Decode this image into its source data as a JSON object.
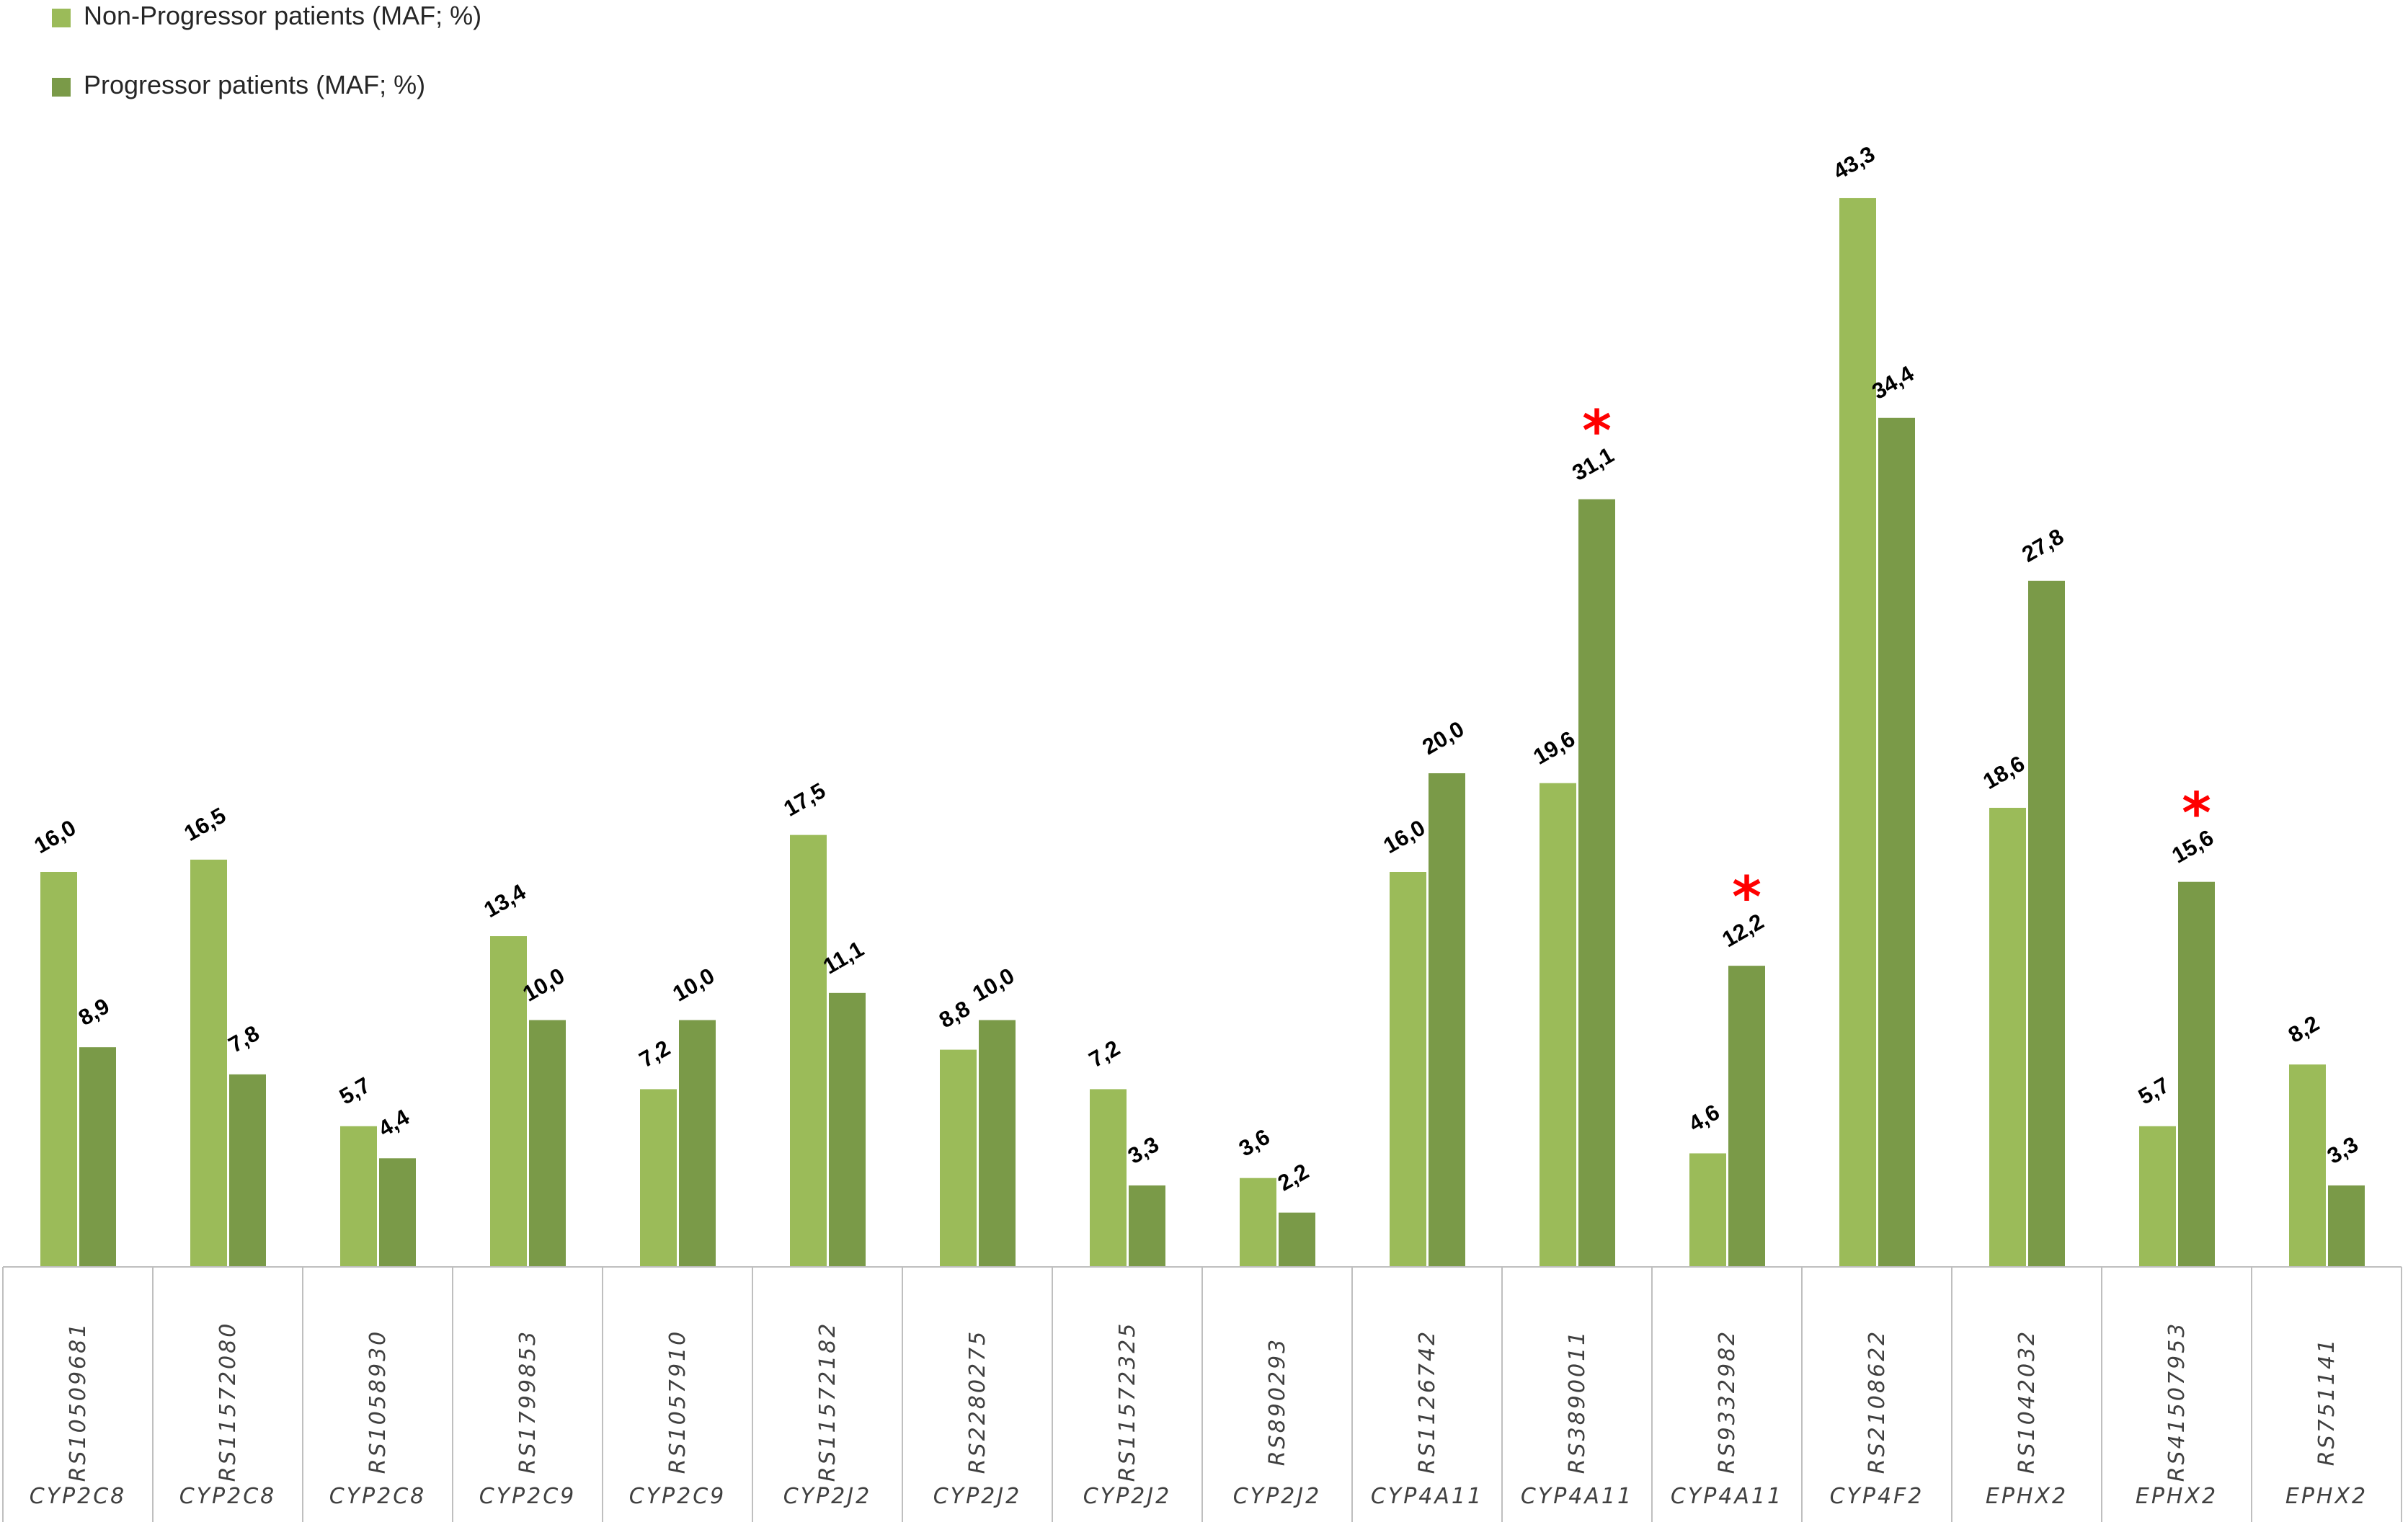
{
  "chart_data": {
    "type": "bar",
    "title": "",
    "xlabel": "",
    "ylabel": "",
    "ylim": [
      0,
      45
    ],
    "grid": false,
    "legend": "top-left",
    "categories": [
      {
        "snp": "RS10509681",
        "gene": "CYP2C8"
      },
      {
        "snp": "RS11572080",
        "gene": "CYP2C8"
      },
      {
        "snp": "RS1058930",
        "gene": "CYP2C8"
      },
      {
        "snp": "RS1799853",
        "gene": "CYP2C9"
      },
      {
        "snp": "RS1057910",
        "gene": "CYP2C9"
      },
      {
        "snp": "RS11572182",
        "gene": "CYP2J2"
      },
      {
        "snp": "RS2280275",
        "gene": "CYP2J2"
      },
      {
        "snp": "RS11572325",
        "gene": "CYP2J2"
      },
      {
        "snp": "RS890293",
        "gene": "CYP2J2"
      },
      {
        "snp": "RS1126742",
        "gene": "CYP4A11"
      },
      {
        "snp": "RS3890011",
        "gene": "CYP4A11"
      },
      {
        "snp": "RS9332982",
        "gene": "CYP4A11"
      },
      {
        "snp": "RS2108622",
        "gene": "CYP4F2"
      },
      {
        "snp": "RS1042032",
        "gene": "EPHX2"
      },
      {
        "snp": "RS41507953",
        "gene": "EPHX2"
      },
      {
        "snp": "RS751141",
        "gene": "EPHX2"
      }
    ],
    "series": [
      {
        "name": "Non-Progressor patients (MAF; %)",
        "color": "#9bbb59",
        "values": [
          16.0,
          16.5,
          5.7,
          13.4,
          7.2,
          17.5,
          8.8,
          7.2,
          3.6,
          16.0,
          19.6,
          4.6,
          43.3,
          18.6,
          5.7,
          8.2
        ],
        "labels": [
          "16,0",
          "16,5",
          "5,7",
          "13,4",
          "7,2",
          "17,5",
          "8,8",
          "7,2",
          "3,6",
          "16,0",
          "19,6",
          "4,6",
          "43,3",
          "18,6",
          "5,7",
          "8,2"
        ]
      },
      {
        "name": "Progressor patients (MAF; %)",
        "color": "#7a9a48",
        "values": [
          8.9,
          7.8,
          4.4,
          10.0,
          10.0,
          11.1,
          10.0,
          3.3,
          2.2,
          20.0,
          31.1,
          12.2,
          34.4,
          27.8,
          15.6,
          3.3
        ],
        "labels": [
          "8,9",
          "7,8",
          "4,4",
          "10,0",
          "10,0",
          "11,1",
          "10,0",
          "3,3",
          "2,2",
          "20,0",
          "31,1",
          "12,2",
          "34,4",
          "27,8",
          "15,6",
          "3,3"
        ]
      }
    ],
    "significance": {
      "symbol": "*",
      "color": "#ff0000",
      "category_indices": [
        10,
        11,
        14
      ]
    }
  }
}
